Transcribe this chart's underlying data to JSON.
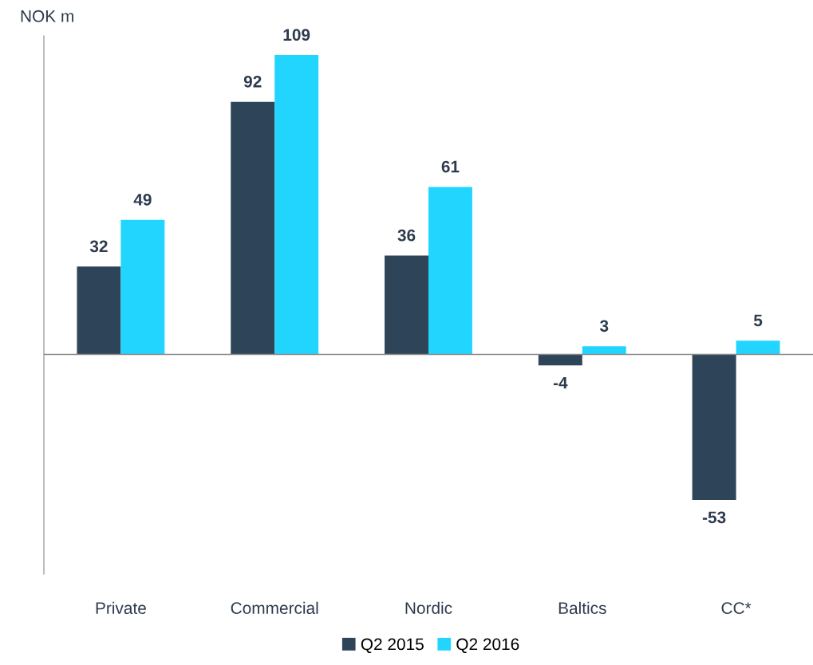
{
  "chart_data": {
    "type": "bar",
    "ylabel": "NOK m",
    "categories": [
      "Private",
      "Commercial",
      "Nordic",
      "Baltics",
      "CC*"
    ],
    "series": [
      {
        "name": "Q2 2015",
        "color": "#2e4459",
        "values": [
          32,
          92,
          36,
          -4,
          -53
        ]
      },
      {
        "name": "Q2 2016",
        "color": "#22d5ff",
        "values": [
          49,
          109,
          61,
          3,
          5
        ]
      }
    ],
    "ylim": [
      -80,
      116
    ],
    "tick_labels": "x",
    "data_labels": true,
    "grid": false,
    "legend": "bottom"
  }
}
